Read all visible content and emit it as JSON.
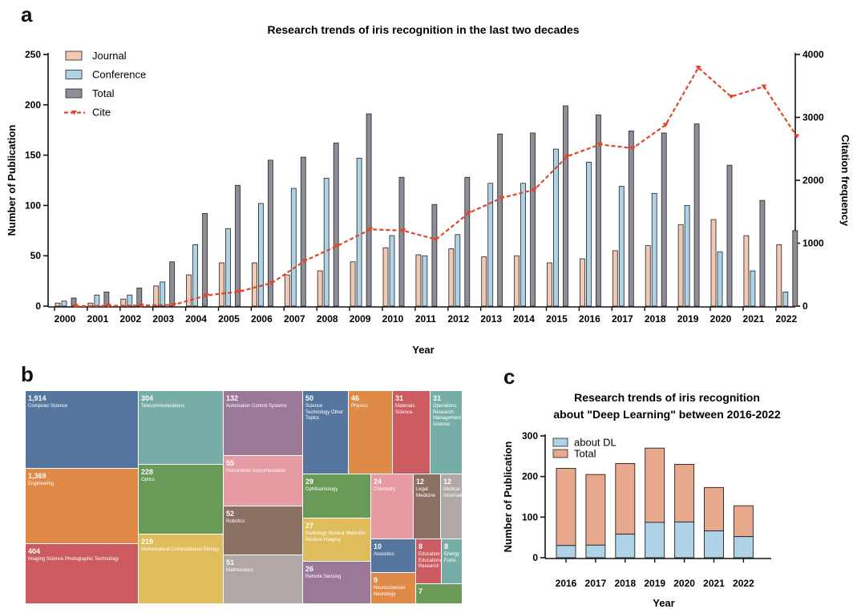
{
  "panels": {
    "a": "a",
    "b": "b",
    "c": "c"
  },
  "chart_data": [
    {
      "type": "bar",
      "title": "Research trends of iris recognition in the last two decades",
      "xlabel": "Year",
      "ylabel": "Number of Publication",
      "y2label": "Citation frequency",
      "ylim": [
        0,
        250
      ],
      "y2lim": [
        0,
        4000
      ],
      "yticks": [
        0,
        50,
        100,
        150,
        200,
        250
      ],
      "y2ticks": [
        0,
        1000,
        2000,
        3000,
        4000
      ],
      "legend_position": "top-left",
      "grid": false,
      "categories": [
        "2000",
        "2001",
        "2002",
        "2003",
        "2004",
        "2005",
        "2006",
        "2007",
        "2008",
        "2009",
        "2010",
        "2011",
        "2012",
        "2013",
        "2014",
        "2015",
        "2016",
        "2017",
        "2018",
        "2019",
        "2020",
        "2021",
        "2022"
      ],
      "series": [
        {
          "name": "Journal",
          "type": "bar",
          "color": "#f0c8b4",
          "values": [
            3,
            3,
            7,
            20,
            31,
            43,
            43,
            31,
            35,
            44,
            58,
            51,
            57,
            49,
            50,
            43,
            47,
            55,
            60,
            81,
            86,
            70,
            61
          ]
        },
        {
          "name": "Conference",
          "type": "bar",
          "color": "#aed3e6",
          "values": [
            5,
            11,
            11,
            24,
            61,
            77,
            102,
            117,
            127,
            147,
            70,
            50,
            71,
            122,
            122,
            156,
            143,
            119,
            112,
            100,
            54,
            35,
            14
          ]
        },
        {
          "name": "Total",
          "type": "bar",
          "color": "#8e8e99",
          "values": [
            8,
            14,
            18,
            44,
            92,
            120,
            145,
            148,
            162,
            191,
            128,
            101,
            128,
            171,
            172,
            199,
            190,
            174,
            172,
            181,
            140,
            105,
            75
          ]
        },
        {
          "name": "Cite",
          "type": "line",
          "axis": "right",
          "color": "#e0472a",
          "values": [
            0,
            5,
            10,
            20,
            170,
            230,
            370,
            720,
            960,
            1220,
            1200,
            1060,
            1480,
            1720,
            1850,
            2380,
            2570,
            2510,
            2880,
            3790,
            3330,
            3490,
            2700
          ]
        }
      ]
    },
    {
      "type": "treemap",
      "tiles": [
        {
          "value": "1,914",
          "label": "Computer Science",
          "color": "#56769f"
        },
        {
          "value": "1,369",
          "label": "Engineering",
          "color": "#e08a48"
        },
        {
          "value": "404",
          "label": "Imaging Science Photographic Technology",
          "color": "#cc5b61"
        },
        {
          "value": "304",
          "label": "Telecommunications",
          "color": "#76aea7"
        },
        {
          "value": "228",
          "label": "Optics",
          "color": "#699a58"
        },
        {
          "value": "219",
          "label": "Mathematical Computational Biology",
          "color": "#dfbc5c"
        },
        {
          "value": "132",
          "label": "Automation Control Systems",
          "color": "#9c7898"
        },
        {
          "value": "55",
          "label": "Instruments Instrumentation",
          "color": "#e69aa1"
        },
        {
          "value": "52",
          "label": "Robotics",
          "color": "#8c7062"
        },
        {
          "value": "51",
          "label": "Mathematics",
          "color": "#b0a8a6"
        },
        {
          "value": "50",
          "label": "Science Technology Other Topics",
          "color": "#56769f"
        },
        {
          "value": "46",
          "label": "Physics",
          "color": "#e08a48"
        },
        {
          "value": "31",
          "label": "Materials Science",
          "color": "#cc5b61"
        },
        {
          "value": "31",
          "label": "Operations Research Management Science",
          "color": "#76aea7"
        },
        {
          "value": "29",
          "label": "Ophthalmology",
          "color": "#699a58"
        },
        {
          "value": "27",
          "label": "Radiology Nuclear Medicine Medical Imaging",
          "color": "#dfbc5c"
        },
        {
          "value": "26",
          "label": "Remote Sensing",
          "color": "#9c7898"
        },
        {
          "value": "24",
          "label": "Chemistry",
          "color": "#e69aa1"
        },
        {
          "value": "12",
          "label": "Legal Medicine",
          "color": "#8c7062"
        },
        {
          "value": "12",
          "label": "Medical Informatics",
          "color": "#b0a8a6"
        },
        {
          "value": "10",
          "label": "Acoustics",
          "color": "#56769f"
        },
        {
          "value": "9",
          "label": "Neurosciences Neurology",
          "color": "#e08a48"
        },
        {
          "value": "8",
          "label": "Education Educational Research",
          "color": "#cc5b61"
        },
        {
          "value": "8",
          "label": "Energy Fuels",
          "color": "#76aea7"
        },
        {
          "value": "7",
          "label": "",
          "color": "#699a58"
        }
      ]
    },
    {
      "type": "bar",
      "stacked": true,
      "title": "Research trends of iris recognition\nabout \"Deep Learning\" between 2016-2022",
      "title_lines": [
        "Research trends of iris recognition",
        "about \"Deep Learning\" between 2016-2022"
      ],
      "xlabel": "Year",
      "ylabel": "Number of Publication",
      "ylim": [
        0,
        300
      ],
      "yticks": [
        0,
        100,
        200,
        300
      ],
      "legend_position": "top-left",
      "categories": [
        "2016",
        "2017",
        "2018",
        "2019",
        "2020",
        "2021",
        "2022"
      ],
      "series": [
        {
          "name": "about DL",
          "color": "#aed3e6",
          "values": [
            30,
            31,
            58,
            87,
            88,
            66,
            52
          ]
        },
        {
          "name": "Total",
          "color": "#e8a88e",
          "values": [
            220,
            205,
            232,
            270,
            230,
            173,
            128
          ]
        }
      ]
    }
  ]
}
